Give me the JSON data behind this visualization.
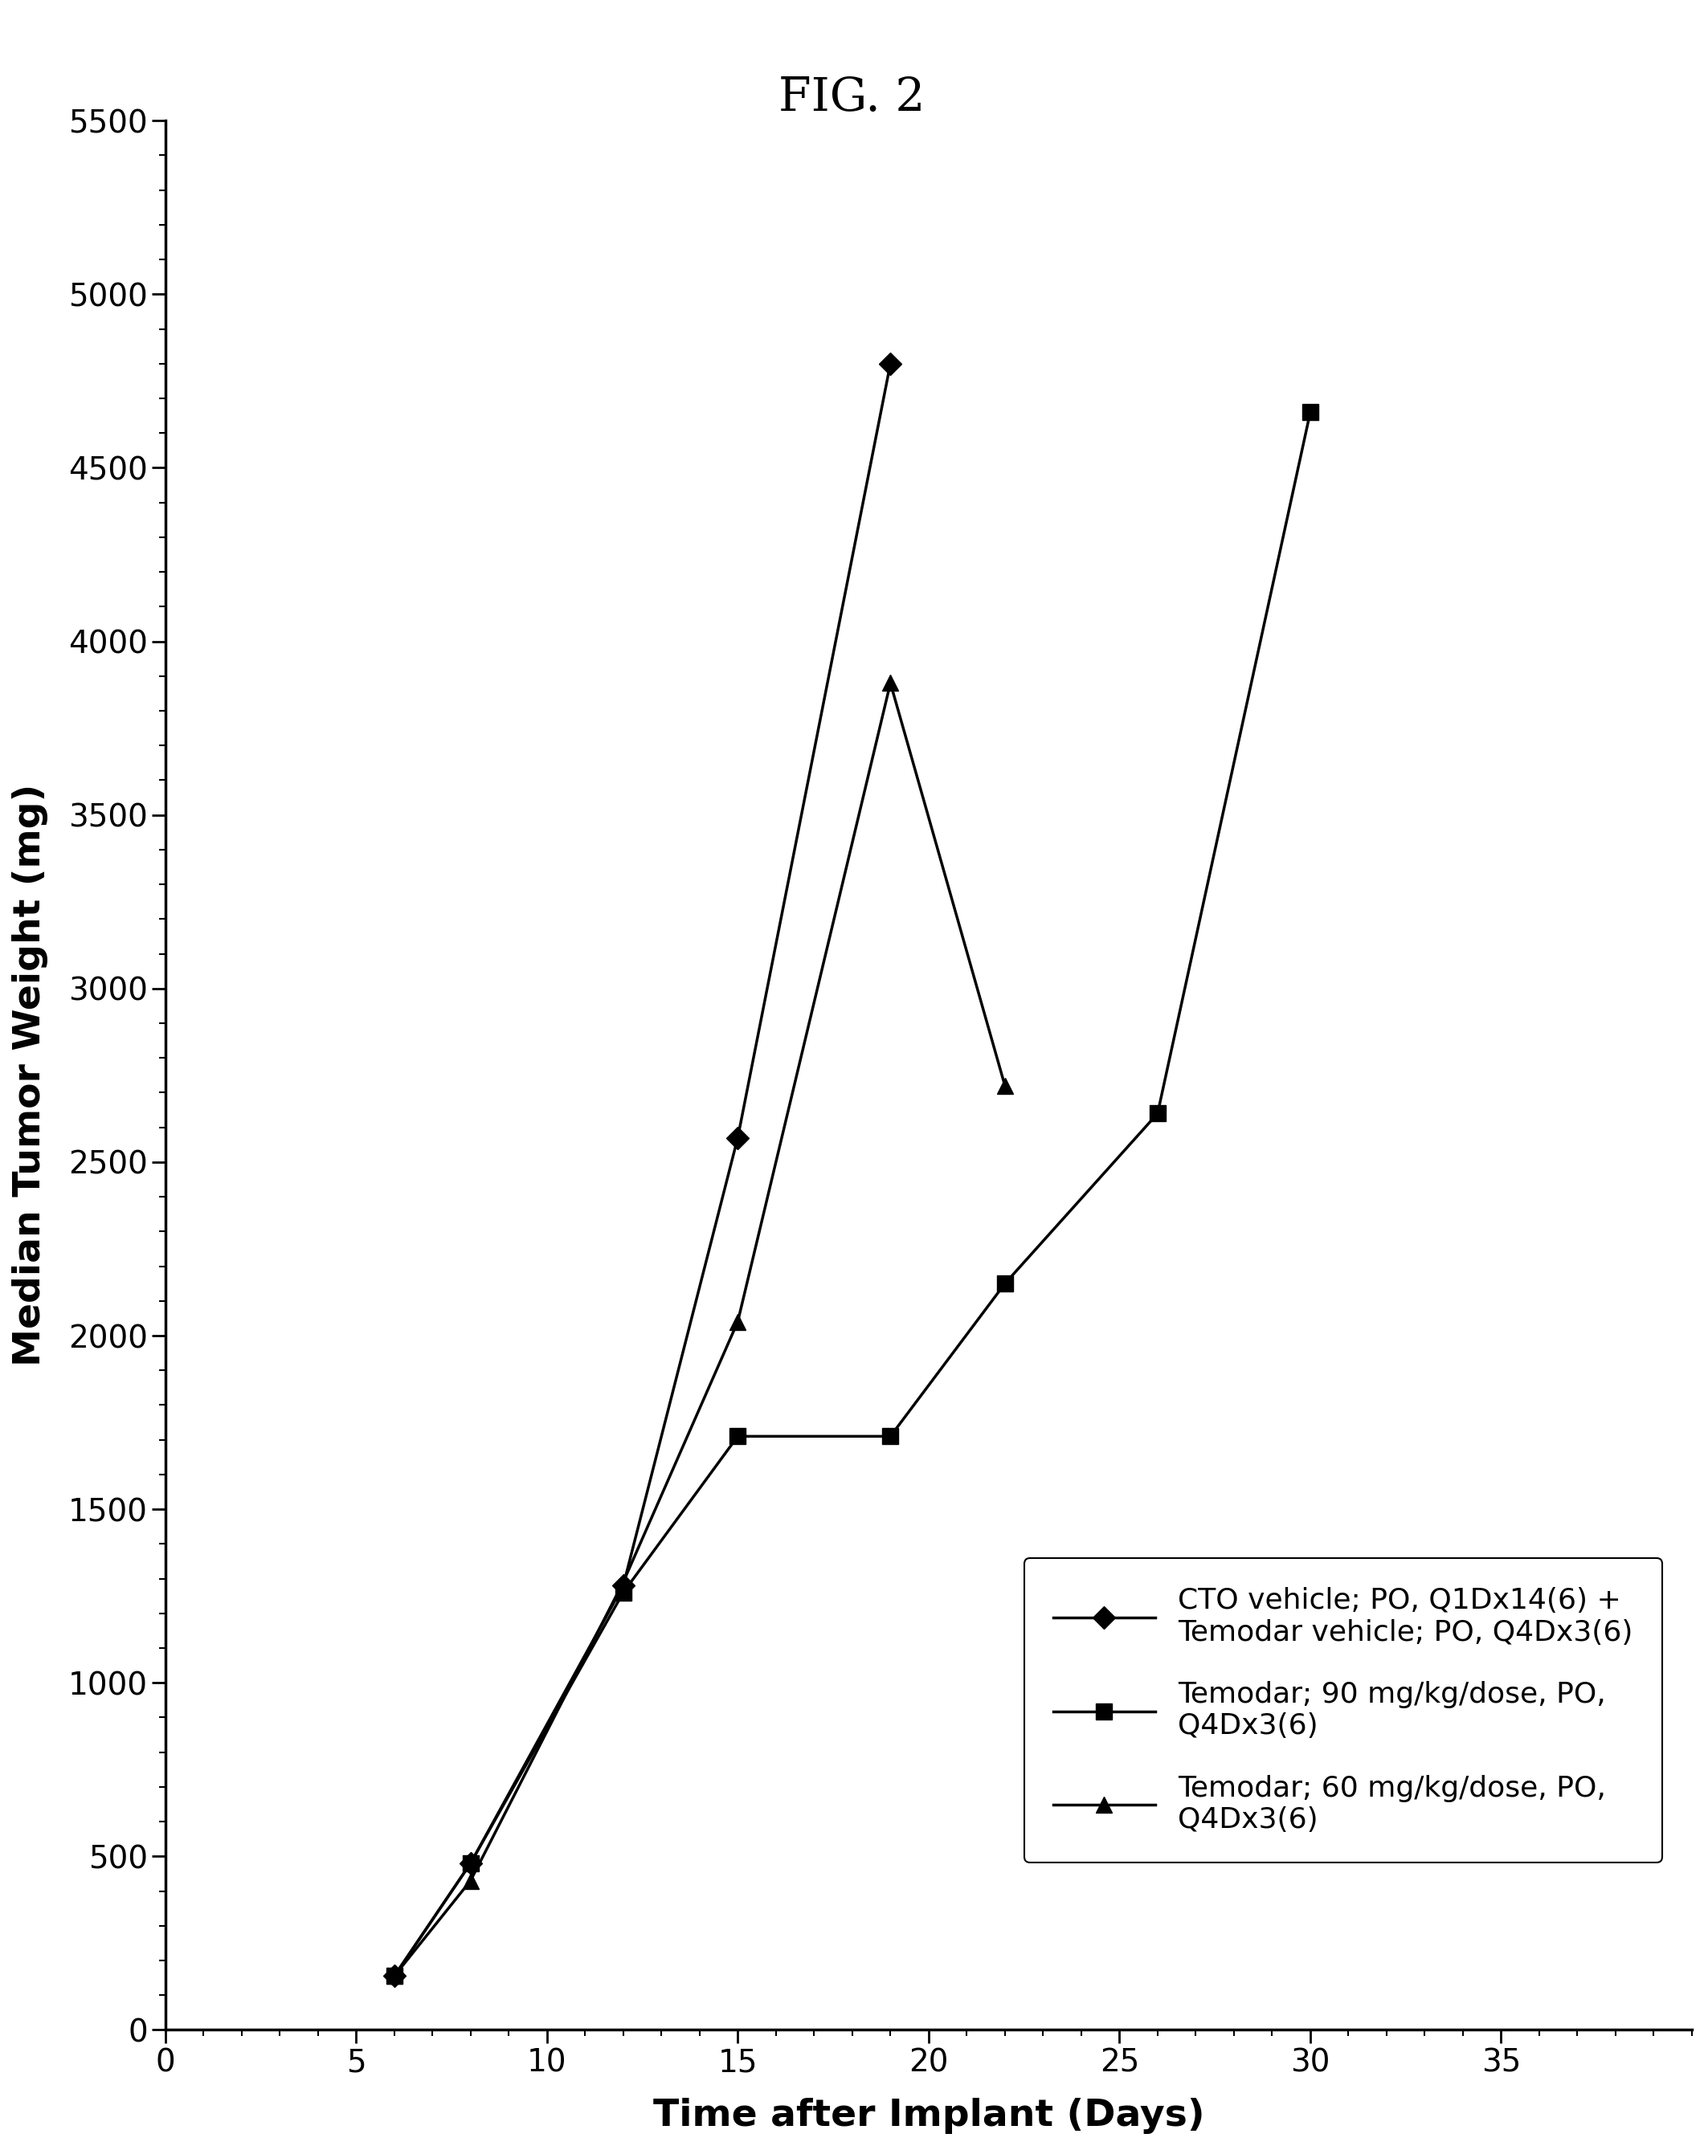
{
  "title": "FIG. 2",
  "xlabel": "Time after Implant (Days)",
  "ylabel": "Median Tumor Weight (mg)",
  "xlim": [
    0,
    40
  ],
  "ylim": [
    0,
    5500
  ],
  "xticks": [
    0,
    5,
    10,
    15,
    20,
    25,
    30,
    35
  ],
  "yticks": [
    0,
    500,
    1000,
    1500,
    2000,
    2500,
    3000,
    3500,
    4000,
    4500,
    5000,
    5500
  ],
  "series": [
    {
      "label": "CTO vehicle; PO, Q1Dx14(6) +\nTemodar vehicle; PO, Q4Dx3(6)",
      "x": [
        6,
        8,
        12,
        15,
        19
      ],
      "y": [
        155,
        480,
        1280,
        2570,
        4800
      ],
      "color": "#000000",
      "marker": "D",
      "markersize": 14,
      "linewidth": 2.5
    },
    {
      "label": "Temodar; 90 mg/kg/dose, PO,\nQ4Dx3(6)",
      "x": [
        6,
        8,
        12,
        15,
        19,
        22,
        26,
        30
      ],
      "y": [
        155,
        480,
        1260,
        1710,
        1710,
        2150,
        2640,
        4660
      ],
      "color": "#000000",
      "marker": "s",
      "markersize": 14,
      "linewidth": 2.5
    },
    {
      "label": "Temodar; 60 mg/kg/dose, PO,\nQ4Dx3(6)",
      "x": [
        6,
        8,
        12,
        15,
        19,
        22
      ],
      "y": [
        155,
        430,
        1290,
        2040,
        3880,
        2720
      ],
      "color": "#000000",
      "marker": "^",
      "markersize": 14,
      "linewidth": 2.5
    }
  ],
  "background_color": "#ffffff",
  "title_fontsize": 42,
  "label_fontsize": 34,
  "tick_fontsize": 28,
  "legend_fontsize": 26
}
